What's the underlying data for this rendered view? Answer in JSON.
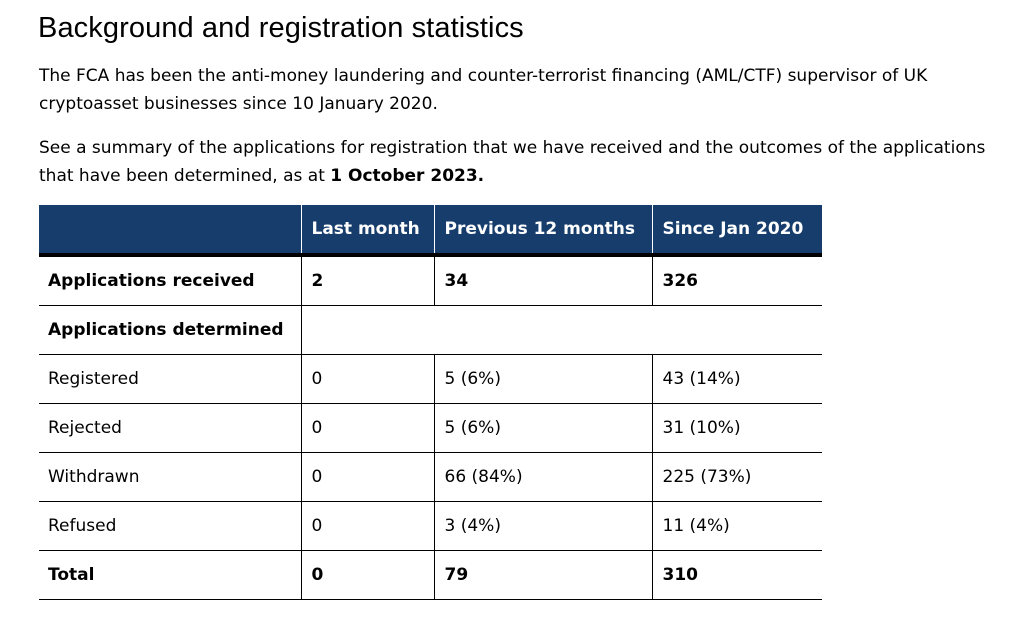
{
  "heading": "Background and registration statistics",
  "intro": {
    "p1": "The FCA has been the anti-money laundering and counter-terrorist financing (AML/CTF) supervisor of UK cryptoasset businesses since 10 January 2020.",
    "p2_text": "See a summary of the applications for registration that we have received and the outcomes of the applications that have been determined, as at ",
    "p2_date": "1 October 2023."
  },
  "table": {
    "header_bg": "#163d6c",
    "headers": [
      "",
      "Last month",
      "Previous 12 months",
      "Since Jan 2020"
    ],
    "rows": [
      {
        "label": "Applications received",
        "cells": [
          "2",
          "34",
          "326"
        ]
      },
      {
        "label": "Applications determined"
      },
      {
        "label": "Registered",
        "cells": [
          "0",
          "5 (6%)",
          "43 (14%)"
        ]
      },
      {
        "label": "Rejected",
        "cells": [
          "0",
          "5 (6%)",
          "31 (10%)"
        ]
      },
      {
        "label": "Withdrawn",
        "cells": [
          "0",
          "66 (84%)",
          "225 (73%)"
        ]
      },
      {
        "label": "Refused",
        "cells": [
          "0",
          "3 (4%)",
          "11 (4%)"
        ]
      },
      {
        "label": "Total",
        "cells": [
          "0",
          "79",
          "310"
        ]
      }
    ]
  }
}
